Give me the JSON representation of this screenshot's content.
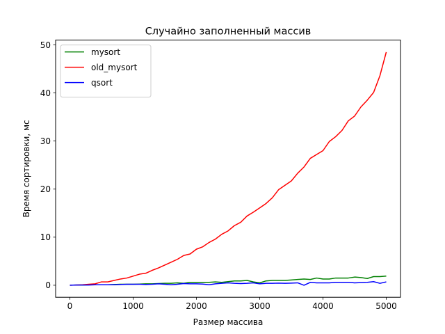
{
  "chart_data": {
    "type": "line",
    "title": "Случайно заполненный массив",
    "xlabel": "Размер массива",
    "ylabel": "Время сортировки, мс",
    "xlim": [
      -225,
      5225
    ],
    "ylim": [
      -2.5,
      51
    ],
    "xticks": [
      0,
      1000,
      2000,
      3000,
      4000,
      5000
    ],
    "yticks": [
      0,
      10,
      20,
      30,
      40,
      50
    ],
    "grid": false,
    "legend_position": "top-left",
    "x": [
      0,
      100,
      200,
      300,
      400,
      500,
      600,
      700,
      800,
      900,
      1000,
      1100,
      1200,
      1300,
      1400,
      1500,
      1600,
      1700,
      1800,
      1900,
      2000,
      2100,
      2200,
      2300,
      2400,
      2500,
      2600,
      2700,
      2800,
      2900,
      3000,
      3100,
      3200,
      3300,
      3400,
      3500,
      3600,
      3700,
      3800,
      3900,
      4000,
      4100,
      4200,
      4300,
      4400,
      4500,
      4600,
      4700,
      4800,
      4900,
      5000
    ],
    "series": [
      {
        "name": "mysort",
        "color": "#008000",
        "values": [
          0,
          0.05,
          0.05,
          0.1,
          0.1,
          0.1,
          0.1,
          0.15,
          0.2,
          0.2,
          0.2,
          0.25,
          0.3,
          0.3,
          0.35,
          0.4,
          0.4,
          0.5,
          0.4,
          0.6,
          0.6,
          0.6,
          0.6,
          0.7,
          0.6,
          0.75,
          0.9,
          0.9,
          1.0,
          0.7,
          0.5,
          0.9,
          1.0,
          1.0,
          1.0,
          1.1,
          1.2,
          1.3,
          1.2,
          1.5,
          1.3,
          1.3,
          1.5,
          1.5,
          1.5,
          1.7,
          1.6,
          1.4,
          1.8,
          1.8,
          1.9
        ]
      },
      {
        "name": "old_mysort",
        "color": "#ff0000",
        "values": [
          0,
          0.05,
          0.1,
          0.2,
          0.3,
          0.7,
          0.7,
          1.0,
          1.3,
          1.5,
          1.9,
          2.3,
          2.5,
          3.1,
          3.6,
          4.2,
          4.8,
          5.4,
          6.2,
          6.5,
          7.5,
          8.0,
          8.9,
          9.6,
          10.6,
          11.3,
          12.4,
          13.1,
          14.4,
          15.2,
          16.1,
          17.0,
          18.2,
          19.9,
          20.8,
          21.7,
          23.3,
          24.6,
          26.4,
          27.2,
          28.0,
          29.9,
          30.9,
          32.2,
          34.2,
          35.2,
          37.1,
          38.5,
          40.1,
          43.6,
          48.5
        ]
      },
      {
        "name": "qsort",
        "color": "#0000ff",
        "values": [
          0,
          0.05,
          0.05,
          0.05,
          0.1,
          0.1,
          0.1,
          0.1,
          0.15,
          0.2,
          0.2,
          0.2,
          0.15,
          0.2,
          0.3,
          0.2,
          0.1,
          0.2,
          0.35,
          0.3,
          0.3,
          0.25,
          0.1,
          0.3,
          0.4,
          0.5,
          0.4,
          0.35,
          0.4,
          0.5,
          0.3,
          0.4,
          0.4,
          0.45,
          0.4,
          0.45,
          0.5,
          0.0,
          0.6,
          0.5,
          0.5,
          0.5,
          0.6,
          0.6,
          0.6,
          0.5,
          0.55,
          0.6,
          0.75,
          0.4,
          0.7
        ]
      }
    ]
  }
}
